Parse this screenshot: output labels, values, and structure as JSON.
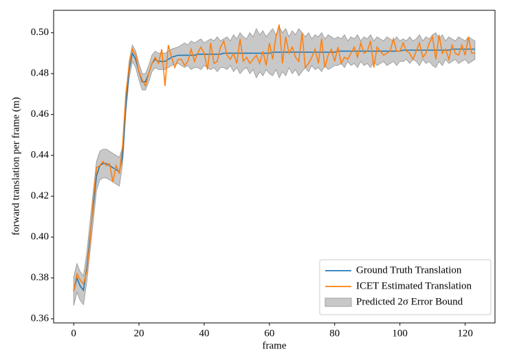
{
  "chart_data": {
    "type": "line",
    "xlabel": "frame",
    "ylabel": "forward translation per frame (m)",
    "xlim": [
      -6.15,
      129.15
    ],
    "ylim": [
      0.358,
      0.511
    ],
    "xticks": [
      0,
      20,
      40,
      60,
      80,
      100,
      120
    ],
    "yticks": [
      0.36,
      0.38,
      {
        "value": 0.4,
        "label": "0.40"
      },
      0.42,
      0.44,
      0.46,
      0.48,
      {
        "value": 0.5,
        "label": "0.50"
      }
    ],
    "legend": "lower right",
    "x": [
      0,
      1,
      2,
      3,
      4,
      5,
      6,
      7,
      8,
      9,
      10,
      11,
      12,
      13,
      14,
      15,
      16,
      17,
      18,
      19,
      20,
      21,
      22,
      23,
      24,
      25,
      26,
      27,
      28,
      29,
      30,
      31,
      32,
      33,
      34,
      35,
      36,
      37,
      38,
      39,
      40,
      41,
      42,
      43,
      44,
      45,
      46,
      47,
      48,
      49,
      50,
      51,
      52,
      53,
      54,
      55,
      56,
      57,
      58,
      59,
      60,
      61,
      62,
      63,
      64,
      65,
      66,
      67,
      68,
      69,
      70,
      71,
      72,
      73,
      74,
      75,
      76,
      77,
      78,
      79,
      80,
      81,
      82,
      83,
      84,
      85,
      86,
      87,
      88,
      89,
      90,
      91,
      92,
      93,
      94,
      95,
      96,
      97,
      98,
      99,
      100,
      101,
      102,
      103,
      104,
      105,
      106,
      107,
      108,
      109,
      110,
      111,
      112,
      113,
      114,
      115,
      116,
      117,
      118,
      119,
      120,
      121,
      122,
      123
    ],
    "series": [
      {
        "name": "Ground Truth Translation",
        "color": "#1f77b4",
        "values": [
          0.3735,
          0.38,
          0.376,
          0.374,
          0.385,
          0.4,
          0.415,
          0.43,
          0.435,
          0.436,
          0.436,
          0.435,
          0.434,
          0.433,
          0.432,
          0.44,
          0.465,
          0.482,
          0.49,
          0.487,
          0.481,
          0.476,
          0.476,
          0.48,
          0.485,
          0.487,
          0.486,
          0.486,
          0.486,
          0.487,
          0.488,
          0.4885,
          0.489,
          0.489,
          0.489,
          0.489,
          0.489,
          0.489,
          0.4895,
          0.4895,
          0.4895,
          0.4895,
          0.4895,
          0.4895,
          0.4895,
          0.4895,
          0.49,
          0.49,
          0.49,
          0.49,
          0.49,
          0.49,
          0.49,
          0.49,
          0.49,
          0.49,
          0.49,
          0.49,
          0.49,
          0.49,
          0.49,
          0.4905,
          0.4905,
          0.4905,
          0.4905,
          0.4905,
          0.4905,
          0.4905,
          0.4905,
          0.4905,
          0.4905,
          0.4905,
          0.4905,
          0.4905,
          0.4905,
          0.4905,
          0.4905,
          0.4905,
          0.4905,
          0.4905,
          0.4905,
          0.491,
          0.491,
          0.491,
          0.491,
          0.491,
          0.491,
          0.491,
          0.491,
          0.491,
          0.491,
          0.491,
          0.491,
          0.491,
          0.491,
          0.491,
          0.491,
          0.491,
          0.491,
          0.491,
          0.491,
          0.4915,
          0.4915,
          0.4915,
          0.4915,
          0.4915,
          0.4915,
          0.4915,
          0.4915,
          0.4915,
          0.4915,
          0.4915,
          0.4915,
          0.4915,
          0.4915,
          0.4915,
          0.492,
          0.492,
          0.492,
          0.492,
          0.492,
          0.492,
          0.492,
          0.492
        ]
      },
      {
        "name": "ICET Estimated Translation",
        "color": "#ff7f0e",
        "values": [
          0.3735,
          0.382,
          0.379,
          0.377,
          0.383,
          0.398,
          0.418,
          0.434,
          0.435,
          0.437,
          0.435,
          0.436,
          0.427,
          0.435,
          0.431,
          0.445,
          0.47,
          0.484,
          0.492,
          0.489,
          0.481,
          0.477,
          0.474,
          0.48,
          0.485,
          0.488,
          0.485,
          0.492,
          0.474,
          0.494,
          0.488,
          0.483,
          0.487,
          0.487,
          0.484,
          0.486,
          0.492,
          0.486,
          0.49,
          0.493,
          0.49,
          0.482,
          0.495,
          0.485,
          0.486,
          0.493,
          0.496,
          0.489,
          0.487,
          0.49,
          0.485,
          0.497,
          0.486,
          0.488,
          0.485,
          0.487,
          0.489,
          0.485,
          0.491,
          0.484,
          0.495,
          0.487,
          0.498,
          0.504,
          0.485,
          0.498,
          0.49,
          0.493,
          0.488,
          0.486,
          0.5,
          0.483,
          0.485,
          0.488,
          0.492,
          0.485,
          0.497,
          0.483,
          0.489,
          0.492,
          0.486,
          0.493,
          0.485,
          0.488,
          0.487,
          0.49,
          0.493,
          0.488,
          0.495,
          0.49,
          0.491,
          0.496,
          0.483,
          0.493,
          0.491,
          0.489,
          0.49,
          0.491,
          0.497,
          0.491,
          0.491,
          0.495,
          0.491,
          0.49,
          0.487,
          0.491,
          0.495,
          0.488,
          0.49,
          0.495,
          0.498,
          0.487,
          0.499,
          0.49,
          0.492,
          0.487,
          0.494,
          0.49,
          0.489,
          0.494,
          0.489,
          0.498,
          0.49,
          0.49
        ]
      },
      {
        "name": "Predicted 2σ Error Bound",
        "color": "#c8c8c8",
        "edgecolor": "#a0a0a0",
        "upper": [
          0.3805,
          0.387,
          0.383,
          0.381,
          0.392,
          0.407,
          0.422,
          0.437,
          0.442,
          0.443,
          0.443,
          0.442,
          0.441,
          0.44,
          0.439,
          0.444,
          0.469,
          0.486,
          0.494,
          0.491,
          0.485,
          0.48,
          0.48,
          0.484,
          0.489,
          0.491,
          0.49,
          0.49,
          0.49,
          0.491,
          0.492,
          0.4925,
          0.493,
          0.494,
          0.495,
          0.494,
          0.496,
          0.495,
          0.496,
          0.497,
          0.495,
          0.496,
          0.497,
          0.496,
          0.498,
          0.496,
          0.497,
          0.498,
          0.496,
          0.499,
          0.497,
          0.5,
          0.498,
          0.497,
          0.5,
          0.498,
          0.502,
          0.499,
          0.501,
          0.498,
          0.5,
          0.502,
          0.499,
          0.503,
          0.5,
          0.502,
          0.498,
          0.501,
          0.499,
          0.502,
          0.5,
          0.498,
          0.5,
          0.497,
          0.499,
          0.498,
          0.5,
          0.497,
          0.499,
          0.498,
          0.497,
          0.498,
          0.497,
          0.499,
          0.496,
          0.498,
          0.497,
          0.499,
          0.496,
          0.498,
          0.497,
          0.499,
          0.496,
          0.498,
          0.497,
          0.496,
          0.498,
          0.497,
          0.496,
          0.498,
          0.496,
          0.497,
          0.496,
          0.498,
          0.496,
          0.497,
          0.499,
          0.496,
          0.498,
          0.497,
          0.499,
          0.5,
          0.497,
          0.499,
          0.496,
          0.498,
          0.497,
          0.496,
          0.498,
          0.497,
          0.496,
          0.498,
          0.497,
          0.496
        ],
        "lower": [
          0.3665,
          0.373,
          0.369,
          0.367,
          0.378,
          0.393,
          0.408,
          0.423,
          0.428,
          0.429,
          0.429,
          0.428,
          0.427,
          0.426,
          0.425,
          0.436,
          0.461,
          0.478,
          0.486,
          0.483,
          0.477,
          0.472,
          0.472,
          0.476,
          0.481,
          0.483,
          0.482,
          0.482,
          0.482,
          0.483,
          0.484,
          0.4845,
          0.485,
          0.484,
          0.483,
          0.484,
          0.482,
          0.483,
          0.483,
          0.482,
          0.484,
          0.483,
          0.482,
          0.483,
          0.481,
          0.483,
          0.483,
          0.482,
          0.484,
          0.481,
          0.483,
          0.48,
          0.482,
          0.483,
          0.48,
          0.482,
          0.478,
          0.481,
          0.479,
          0.482,
          0.48,
          0.479,
          0.482,
          0.478,
          0.481,
          0.479,
          0.483,
          0.48,
          0.482,
          0.479,
          0.481,
          0.483,
          0.481,
          0.484,
          0.482,
          0.483,
          0.481,
          0.484,
          0.482,
          0.483,
          0.484,
          0.484,
          0.485,
          0.483,
          0.486,
          0.484,
          0.485,
          0.483,
          0.486,
          0.484,
          0.485,
          0.483,
          0.486,
          0.484,
          0.485,
          0.486,
          0.484,
          0.485,
          0.486,
          0.484,
          0.486,
          0.486,
          0.487,
          0.485,
          0.487,
          0.486,
          0.484,
          0.487,
          0.485,
          0.486,
          0.484,
          0.483,
          0.486,
          0.484,
          0.487,
          0.485,
          0.486,
          0.487,
          0.485,
          0.486,
          0.487,
          0.485,
          0.486,
          0.487
        ]
      }
    ]
  }
}
